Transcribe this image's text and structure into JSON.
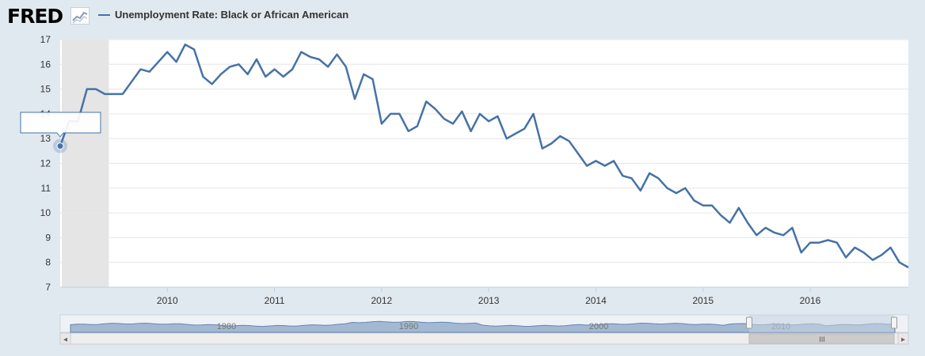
{
  "header": {
    "logo_text": "FRED",
    "series_title": "Unemployment Rate: Black or African American"
  },
  "colors": {
    "series": "#4572a7",
    "background": "#e1e9f0",
    "plot_bg": "#ffffff",
    "recession": "#e5e5e5",
    "navigator_fill": "#a3b9d3",
    "navigator_mask": "#c6d3e2"
  },
  "chart_data": {
    "type": "line",
    "title": "Unemployment Rate: Black or African American",
    "xlabel": "",
    "ylabel": "",
    "ylim": [
      7,
      17
    ],
    "y_ticks": [
      7,
      8,
      9,
      10,
      11,
      12,
      13,
      14,
      15,
      16,
      17
    ],
    "x_ticks": [
      "2010",
      "2011",
      "2012",
      "2013",
      "2014",
      "2015",
      "2016"
    ],
    "x_range": [
      "2009-01",
      "2016-12"
    ],
    "grid": true,
    "recession_shading": [
      "2009-01",
      "2009-06"
    ],
    "series": [
      {
        "x": [
          "2009-01",
          "2009-02",
          "2009-03",
          "2009-04",
          "2009-05",
          "2009-06",
          "2009-07",
          "2009-08",
          "2009-09",
          "2009-10",
          "2009-11",
          "2009-12",
          "2010-01",
          "2010-02",
          "2010-03",
          "2010-04",
          "2010-05",
          "2010-06",
          "2010-07",
          "2010-08",
          "2010-09",
          "2010-10",
          "2010-11",
          "2010-12",
          "2011-01",
          "2011-02",
          "2011-03",
          "2011-04",
          "2011-05",
          "2011-06",
          "2011-07",
          "2011-08",
          "2011-09",
          "2011-10",
          "2011-11",
          "2011-12",
          "2012-01",
          "2012-02",
          "2012-03",
          "2012-04",
          "2012-05",
          "2012-06",
          "2012-07",
          "2012-08",
          "2012-09",
          "2012-10",
          "2012-11",
          "2012-12",
          "2013-01",
          "2013-02",
          "2013-03",
          "2013-04",
          "2013-05",
          "2013-06",
          "2013-07",
          "2013-08",
          "2013-09",
          "2013-10",
          "2013-11",
          "2013-12",
          "2014-01",
          "2014-02",
          "2014-03",
          "2014-04",
          "2014-05",
          "2014-06",
          "2014-07",
          "2014-08",
          "2014-09",
          "2014-10",
          "2014-11",
          "2014-12",
          "2015-01",
          "2015-02",
          "2015-03",
          "2015-04",
          "2015-05",
          "2015-06",
          "2015-07",
          "2015-08",
          "2015-09",
          "2015-10",
          "2015-11",
          "2015-12",
          "2016-01",
          "2016-02",
          "2016-03",
          "2016-04",
          "2016-05",
          "2016-06",
          "2016-07",
          "2016-08",
          "2016-09",
          "2016-10",
          "2016-11",
          "2016-12"
        ],
        "y": [
          12.7,
          13.7,
          13.7,
          15.0,
          15.0,
          14.8,
          14.8,
          14.8,
          15.3,
          15.8,
          15.7,
          16.1,
          16.5,
          16.1,
          16.8,
          16.6,
          15.5,
          15.2,
          15.6,
          15.9,
          16.0,
          15.6,
          16.2,
          15.5,
          15.8,
          15.5,
          15.8,
          16.5,
          16.3,
          16.2,
          15.9,
          16.4,
          15.9,
          14.6,
          15.6,
          15.4,
          13.6,
          14.0,
          14.0,
          13.3,
          13.5,
          14.5,
          14.2,
          13.8,
          13.6,
          14.1,
          13.3,
          14.0,
          13.7,
          13.9,
          13.0,
          13.2,
          13.4,
          14.0,
          12.6,
          12.8,
          13.1,
          12.9,
          12.4,
          11.9,
          12.1,
          11.9,
          12.1,
          11.5,
          11.4,
          10.9,
          11.6,
          11.4,
          11.0,
          10.8,
          11.0,
          10.5,
          10.3,
          10.3,
          9.9,
          9.6,
          10.2,
          9.6,
          9.1,
          9.4,
          9.2,
          9.1,
          9.4,
          8.4,
          8.8,
          8.8,
          8.9,
          8.8,
          8.2,
          8.6,
          8.4,
          8.1,
          8.3,
          8.6,
          8.0,
          7.8
        ]
      }
    ]
  },
  "navigator": {
    "labels": [
      "1980",
      "1990",
      "2000",
      "2010"
    ],
    "grip_label": "III",
    "left_arrow": "◂",
    "right_arrow": "▸"
  },
  "tooltip": {
    "text": ""
  }
}
